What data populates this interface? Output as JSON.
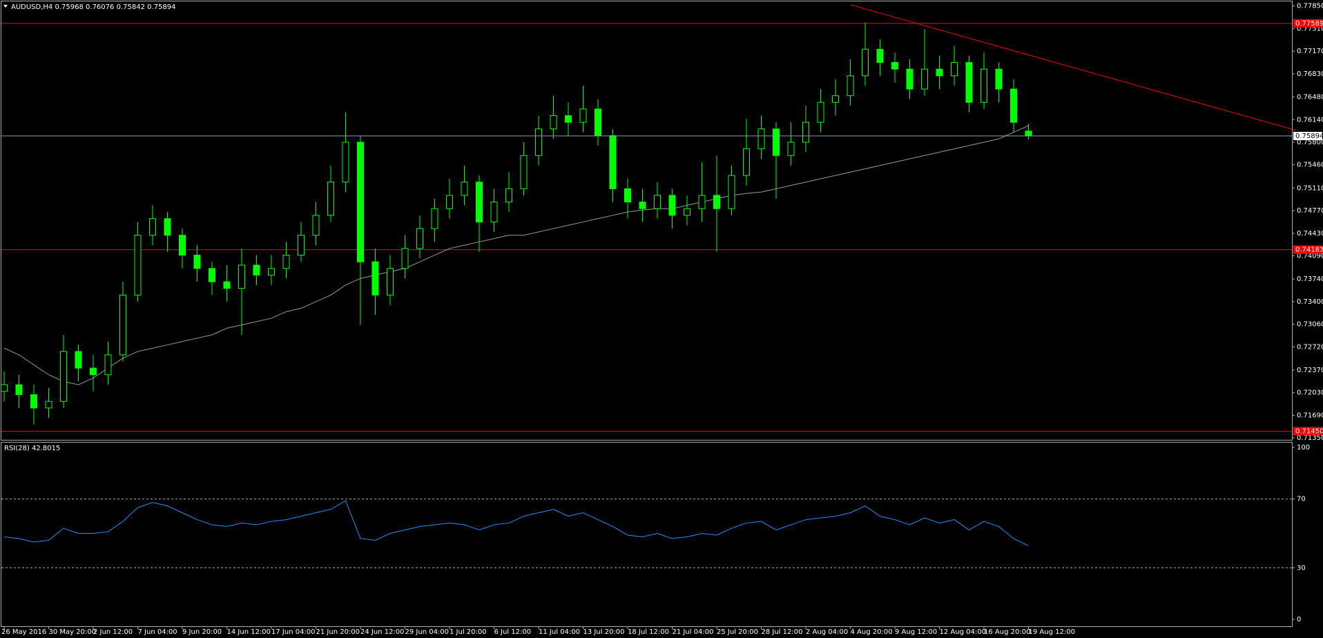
{
  "chart_data": {
    "type": "candlestick",
    "title": "AUDUSD,H4",
    "categories": [
      "26 May 2016",
      null,
      null,
      "30 May 20:00",
      null,
      null,
      "2 Jun 12:00",
      null,
      null,
      "7 Jun 04:00",
      null,
      null,
      "9 Jun 20:00",
      null,
      null,
      "14 Jun 12:00",
      null,
      null,
      "17 Jun 04:00",
      null,
      null,
      "21 Jun 20:00",
      null,
      null,
      "24 Jun 12:00",
      null,
      null,
      "29 Jun 04:00",
      null,
      null,
      "1 Jul 20:00",
      null,
      null,
      "6 Jul 12:00",
      null,
      null,
      "11 Jul 04:00",
      null,
      null,
      "13 Jul 20:00",
      null,
      null,
      "18 Jul 12:00",
      null,
      null,
      "21 Jul 04:00",
      null,
      null,
      "25 Jul 20:00",
      null,
      null,
      "28 Jul 12:00",
      null,
      null,
      "2 Aug 04:00",
      null,
      null,
      "4 Aug 20:00",
      null,
      null,
      "9 Aug 12:00",
      null,
      null,
      "12 Aug 04:00",
      null,
      null,
      "16 Aug 20:00",
      null,
      null,
      "19 Aug 12:00"
    ],
    "open": [
      0.7205,
      0.7215,
      0.72,
      0.718,
      0.719,
      0.7265,
      0.724,
      0.723,
      0.726,
      0.735,
      0.744,
      0.7465,
      0.744,
      0.741,
      0.739,
      0.737,
      0.736,
      0.7395,
      0.738,
      0.739,
      0.741,
      0.744,
      0.747,
      0.752,
      0.758,
      0.74,
      0.735,
      0.739,
      0.742,
      0.745,
      0.748,
      0.75,
      0.752,
      0.746,
      0.749,
      0.751,
      0.756,
      0.76,
      0.762,
      0.761,
      0.763,
      0.759,
      0.751,
      0.749,
      0.748,
      0.75,
      0.747,
      0.748,
      0.75,
      0.748,
      0.753,
      0.757,
      0.76,
      0.756,
      0.758,
      0.761,
      0.764,
      0.765,
      0.768,
      0.772,
      0.77,
      0.769,
      0.766,
      0.769,
      0.768,
      0.77,
      0.764,
      0.769,
      0.766,
      0.75968
    ],
    "high": [
      0.7235,
      0.723,
      0.7215,
      0.721,
      0.729,
      0.7275,
      0.726,
      0.728,
      0.737,
      0.746,
      0.7485,
      0.7475,
      0.745,
      0.7425,
      0.74,
      0.7395,
      0.742,
      0.741,
      0.741,
      0.743,
      0.746,
      0.749,
      0.7545,
      0.7625,
      0.759,
      0.742,
      0.741,
      0.744,
      0.747,
      0.7495,
      0.7525,
      0.7545,
      0.753,
      0.751,
      0.7535,
      0.758,
      0.762,
      0.765,
      0.764,
      0.7665,
      0.7645,
      0.76,
      0.7525,
      0.751,
      0.752,
      0.751,
      0.75,
      0.755,
      0.756,
      0.7545,
      0.7615,
      0.762,
      0.761,
      0.761,
      0.7635,
      0.766,
      0.7675,
      0.7705,
      0.776,
      0.7735,
      0.7715,
      0.7705,
      0.775,
      0.771,
      0.7725,
      0.771,
      0.7715,
      0.77,
      0.7675,
      0.76076
    ],
    "low": [
      0.719,
      0.718,
      0.7155,
      0.7165,
      0.718,
      0.722,
      0.7205,
      0.7215,
      0.725,
      0.734,
      0.7425,
      0.7415,
      0.739,
      0.737,
      0.735,
      0.734,
      0.729,
      0.7365,
      0.7365,
      0.7375,
      0.74,
      0.7425,
      0.746,
      0.7505,
      0.7305,
      0.732,
      0.7335,
      0.7375,
      0.7405,
      0.743,
      0.7465,
      0.7485,
      0.7415,
      0.7445,
      0.7475,
      0.75,
      0.7545,
      0.7585,
      0.759,
      0.7595,
      0.7575,
      0.749,
      0.7465,
      0.746,
      0.7465,
      0.745,
      0.7455,
      0.746,
      0.7415,
      0.747,
      0.7515,
      0.7555,
      0.7495,
      0.7545,
      0.7565,
      0.7595,
      0.762,
      0.7635,
      0.7665,
      0.768,
      0.767,
      0.7645,
      0.765,
      0.766,
      0.7665,
      0.7625,
      0.763,
      0.764,
      0.7595,
      0.75842
    ],
    "close": [
      0.7215,
      0.72,
      0.718,
      0.719,
      0.7265,
      0.724,
      0.723,
      0.726,
      0.735,
      0.744,
      0.7465,
      0.744,
      0.741,
      0.739,
      0.737,
      0.736,
      0.7395,
      0.738,
      0.739,
      0.741,
      0.744,
      0.747,
      0.752,
      0.758,
      0.74,
      0.735,
      0.739,
      0.742,
      0.745,
      0.748,
      0.75,
      0.752,
      0.746,
      0.749,
      0.751,
      0.756,
      0.76,
      0.762,
      0.761,
      0.763,
      0.759,
      0.751,
      0.749,
      0.748,
      0.75,
      0.747,
      0.748,
      0.75,
      0.748,
      0.753,
      0.757,
      0.76,
      0.756,
      0.758,
      0.761,
      0.764,
      0.765,
      0.768,
      0.772,
      0.77,
      0.769,
      0.766,
      0.769,
      0.768,
      0.77,
      0.764,
      0.769,
      0.766,
      0.761,
      0.75894
    ],
    "color": "#00ff00",
    "moving_average": {
      "color": "#9a9a9a",
      "values": [
        0.727,
        0.726,
        0.7245,
        0.723,
        0.722,
        0.7215,
        0.7225,
        0.724,
        0.7255,
        0.7265,
        0.727,
        0.7275,
        0.728,
        0.7285,
        0.729,
        0.73,
        0.7305,
        0.731,
        0.7315,
        0.7325,
        0.733,
        0.734,
        0.735,
        0.7365,
        0.7375,
        0.738,
        0.7385,
        0.739,
        0.74,
        0.741,
        0.742,
        0.7425,
        0.743,
        0.7435,
        0.744,
        0.744,
        0.7445,
        0.745,
        0.7455,
        0.746,
        0.7465,
        0.747,
        0.7475,
        0.7478,
        0.748,
        0.748,
        0.7485,
        0.749,
        0.7495,
        0.75,
        0.7503,
        0.7505,
        0.751,
        0.7515,
        0.752,
        0.7525,
        0.753,
        0.7535,
        0.754,
        0.7545,
        0.755,
        0.7555,
        0.756,
        0.7565,
        0.757,
        0.7575,
        0.758,
        0.7585,
        0.7595,
        0.7605
      ]
    },
    "ylim": [
      0.7131,
      0.7792
    ],
    "yticks": [
      {
        "value": 0.7785,
        "label": "0.77850"
      },
      {
        "value": 0.7751,
        "label": "0.77510"
      },
      {
        "value": 0.7717,
        "label": "0.77170"
      },
      {
        "value": 0.7683,
        "label": "0.76830"
      },
      {
        "value": 0.7648,
        "label": "0.76480"
      },
      {
        "value": 0.7614,
        "label": "0.76140"
      },
      {
        "value": 0.758,
        "label": "0.75800"
      },
      {
        "value": 0.7546,
        "label": "0.75460"
      },
      {
        "value": 0.7511,
        "label": "0.75110"
      },
      {
        "value": 0.7477,
        "label": "0.74770"
      },
      {
        "value": 0.7443,
        "label": "0.74430"
      },
      {
        "value": 0.7409,
        "label": "0.74090"
      },
      {
        "value": 0.7374,
        "label": "0.73740"
      },
      {
        "value": 0.734,
        "label": "0.73400"
      },
      {
        "value": 0.7306,
        "label": "0.73060"
      },
      {
        "value": 0.7272,
        "label": "0.72720"
      },
      {
        "value": 0.7237,
        "label": "0.72370"
      },
      {
        "value": 0.7203,
        "label": "0.72030"
      },
      {
        "value": 0.7169,
        "label": "0.71690"
      },
      {
        "value": 0.7135,
        "label": "0.71350"
      }
    ],
    "levels": [
      {
        "value": 0.77589,
        "color": "#ff0000"
      },
      {
        "value": 0.74183,
        "color": "#ff0000"
      },
      {
        "value": {
          "value": 0.7145,
          "label": "0.71450"
        },
        "color": "#ff0000"
      }
    ],
    "trendline": {
      "x": [
        57,
        87
      ],
      "y": [
        0.7787,
        0.7598
      ],
      "color": "#ff0000"
    },
    "rsi": {
      "label": "RSI(28)",
      "color": "#1e90ff",
      "values": [
        48,
        47,
        45,
        46,
        53,
        50,
        50,
        51,
        57,
        65,
        68,
        66,
        62,
        58,
        55,
        54,
        56,
        55,
        57,
        58,
        60,
        62,
        64,
        69,
        47,
        46,
        50,
        52,
        54,
        55,
        56,
        55,
        52,
        55,
        56,
        60,
        62,
        64,
        60,
        62,
        58,
        54,
        49,
        48,
        50,
        47,
        48,
        50,
        49,
        53,
        56,
        57,
        52,
        55,
        58,
        59,
        60,
        62,
        66,
        60,
        58,
        55,
        59,
        56,
        58,
        52,
        57,
        54,
        47,
        42.8015
      ],
      "ylim": [
        0,
        100
      ],
      "yticks": [
        100,
        70,
        30,
        0
      ],
      "levels": [
        70,
        30
      ]
    }
  }
}
